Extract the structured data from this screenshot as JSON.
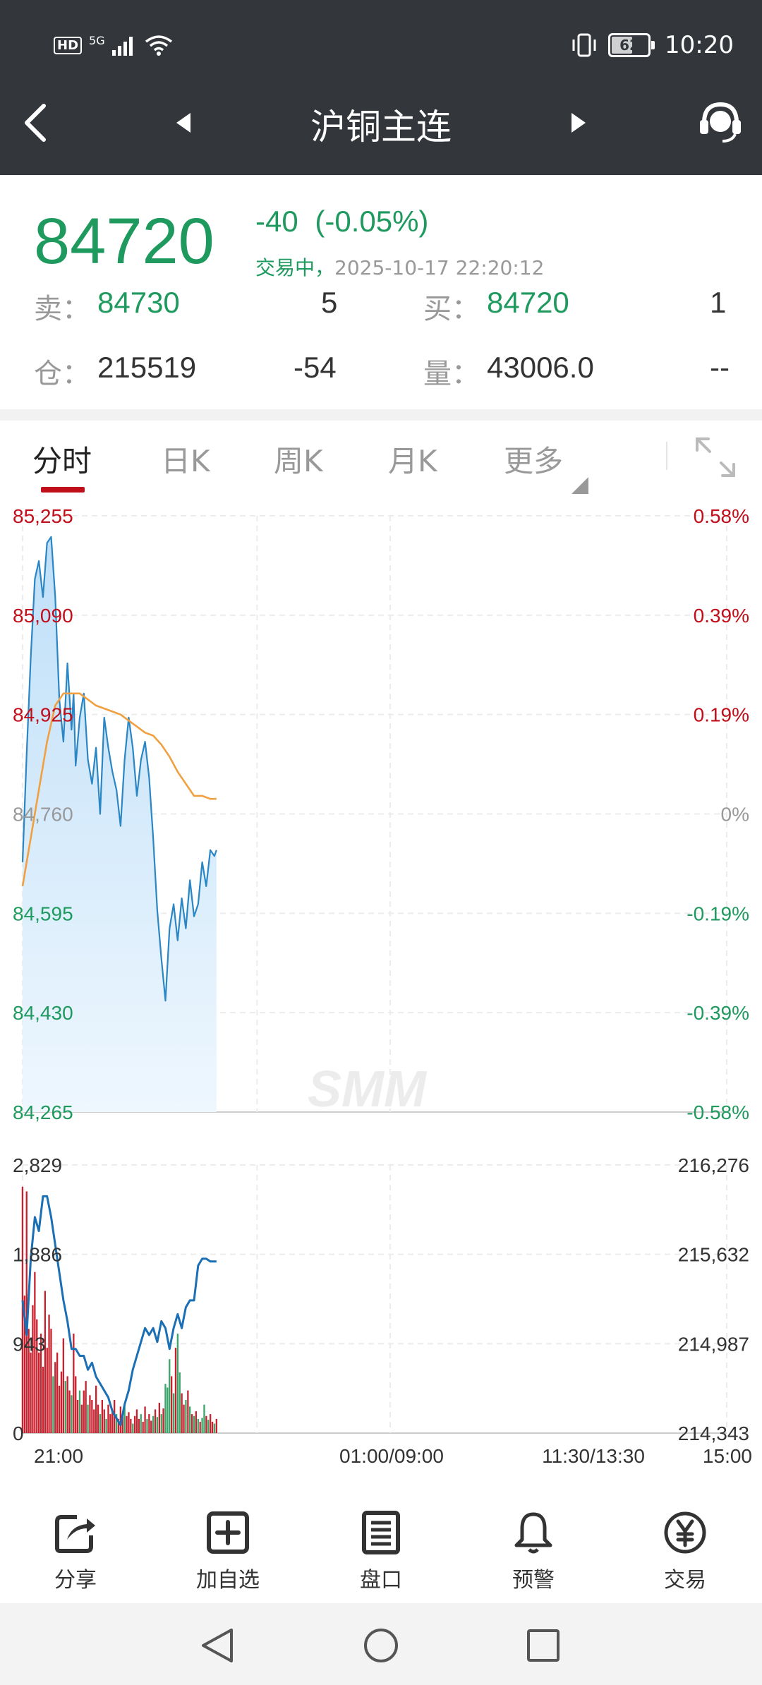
{
  "status_bar": {
    "time": "10:20",
    "battery": "62",
    "battery_level": 0.62,
    "network": "5G",
    "hd": "HD"
  },
  "nav": {
    "title": "沪铜主连"
  },
  "quote": {
    "price": "84720",
    "change": "-40",
    "change_pct": "(-0.05%)",
    "status": "交易中，",
    "timestamp": "2025-10-17 22:20:12",
    "sell_label": "卖：",
    "sell_price": "84730",
    "sell_vol": "5",
    "buy_label": "买：",
    "buy_price": "84720",
    "buy_vol": "1",
    "oi_label": "仓：",
    "oi": "215519",
    "oi_change": "-54",
    "vol_label": "量：",
    "volume": "43006.0",
    "vol_extra": "--"
  },
  "tabs": [
    {
      "label": "分时",
      "active": true
    },
    {
      "label": "日K",
      "active": false
    },
    {
      "label": "周K",
      "active": false
    },
    {
      "label": "月K",
      "active": false
    },
    {
      "label": "更多",
      "active": false
    }
  ],
  "chart_data": [
    {
      "type": "line",
      "title": "",
      "x_ticks": [
        "21:00",
        "01:00/09:00",
        "11:30/13:30",
        "15:00"
      ],
      "y_ticks": [
        "85,255",
        "85,090",
        "84,925",
        "84,760",
        "84,595",
        "84,430",
        "84,265"
      ],
      "y_right_ticks": [
        "0.58%",
        "0.39%",
        "0.19%",
        "0%",
        "-0.19%",
        "-0.39%",
        "-0.58%"
      ],
      "ylim": [
        84265,
        85255
      ],
      "prev_close": 84760,
      "xlim": [
        0,
        345
      ],
      "series": [
        {
          "kind": "price",
          "color": "#2a86c4",
          "x": [
            0,
            2,
            4,
            6,
            8,
            10,
            12,
            14,
            16,
            18,
            20,
            22,
            24,
            25,
            26,
            28,
            30,
            32,
            34,
            36,
            38,
            40,
            42,
            44,
            46,
            48,
            50,
            52,
            54,
            56,
            58,
            60,
            62,
            64,
            66,
            68,
            70,
            72,
            74,
            76,
            78,
            80,
            82,
            84,
            86,
            88,
            90,
            92,
            94,
            95
          ],
          "y": [
            84680,
            84860,
            85020,
            85150,
            85180,
            85120,
            85210,
            85220,
            85120,
            84950,
            84880,
            85010,
            84900,
            84960,
            84840,
            84920,
            84960,
            84850,
            84810,
            84870,
            84760,
            84920,
            84870,
            84830,
            84800,
            84740,
            84850,
            84920,
            84870,
            84790,
            84850,
            84880,
            84820,
            84720,
            84600,
            84520,
            84450,
            84570,
            84610,
            84550,
            84620,
            84570,
            84650,
            84590,
            84610,
            84680,
            84640,
            84700,
            84690,
            84700
          ]
        },
        {
          "kind": "average",
          "color": "#f0a040",
          "x": [
            0,
            4,
            8,
            12,
            16,
            20,
            24,
            28,
            32,
            36,
            40,
            44,
            48,
            52,
            56,
            60,
            64,
            68,
            72,
            76,
            80,
            84,
            88,
            92,
            95
          ],
          "y": [
            84640,
            84720,
            84800,
            84880,
            84940,
            84960,
            84960,
            84960,
            84950,
            84940,
            84935,
            84930,
            84925,
            84915,
            84905,
            84895,
            84890,
            84875,
            84855,
            84830,
            84810,
            84790,
            84790,
            84785,
            84785
          ]
        }
      ]
    },
    {
      "type": "bar",
      "title": "",
      "y_ticks": [
        "2,829",
        "1,886",
        "943",
        "0"
      ],
      "y_right_ticks": [
        "216,276",
        "215,632",
        "214,987",
        "214,343"
      ],
      "ylim": [
        0,
        2829
      ],
      "open_interest_ylim": [
        214343,
        216276
      ],
      "volume_series": {
        "x": [
          0,
          1,
          2,
          3,
          4,
          5,
          6,
          7,
          8,
          9,
          10,
          11,
          12,
          13,
          14,
          15,
          16,
          17,
          18,
          19,
          20,
          21,
          22,
          23,
          24,
          25,
          26,
          27,
          28,
          29,
          30,
          31,
          32,
          33,
          34,
          35,
          36,
          37,
          38,
          39,
          40,
          41,
          42,
          43,
          44,
          45,
          46,
          47,
          48,
          49,
          50,
          51,
          52,
          53,
          54,
          55,
          56,
          57,
          58,
          59,
          60,
          61,
          62,
          63,
          64,
          65,
          66,
          67,
          68,
          69,
          70,
          71,
          72,
          73,
          74,
          75,
          76,
          77,
          78,
          79,
          80,
          81,
          82,
          83,
          84,
          85,
          86,
          87,
          88,
          89,
          90,
          91,
          92,
          93,
          94,
          95
        ],
        "values": [
          2600,
          1450,
          2550,
          1100,
          850,
          1350,
          1700,
          1200,
          850,
          1050,
          700,
          1500,
          900,
          1250,
          1100,
          600,
          750,
          850,
          500,
          650,
          1000,
          550,
          600,
          450,
          400,
          1050,
          600,
          350,
          450,
          300,
          450,
          550,
          300,
          400,
          350,
          250,
          500,
          300,
          200,
          350,
          250,
          150,
          300,
          200,
          250,
          350,
          200,
          150,
          280,
          200,
          300,
          180,
          220,
          150,
          100,
          180,
          250,
          150,
          200,
          120,
          280,
          150,
          200,
          130,
          180,
          250,
          170,
          320,
          200,
          260,
          520,
          480,
          780,
          600,
          420,
          900,
          1050,
          640,
          420,
          300,
          350,
          450,
          280,
          200,
          180,
          230,
          150,
          120,
          160,
          300,
          180,
          140,
          200,
          120,
          100,
          150
        ],
        "up_flags": [
          0,
          0,
          0,
          0,
          0,
          0,
          0,
          0,
          0,
          0,
          0,
          0,
          0,
          0,
          0,
          1,
          0,
          0,
          0,
          0,
          0,
          1,
          0,
          0,
          1,
          0,
          0,
          0,
          1,
          0,
          0,
          0,
          1,
          0,
          0,
          0,
          0,
          0,
          1,
          0,
          0,
          1,
          0,
          0,
          0,
          0,
          1,
          0,
          0,
          0,
          1,
          0,
          0,
          0,
          1,
          0,
          0,
          0,
          1,
          0,
          0,
          1,
          0,
          0,
          1,
          0,
          1,
          0,
          1,
          0,
          1,
          1,
          1,
          0,
          1,
          0,
          1,
          1,
          0,
          0,
          1,
          0,
          1,
          0,
          1,
          0,
          1,
          0,
          1,
          1,
          0,
          1,
          0,
          0,
          1,
          0
        ]
      },
      "open_interest_series": {
        "color": "#1a6fb5",
        "x": [
          0,
          2,
          4,
          6,
          8,
          10,
          12,
          14,
          16,
          18,
          20,
          22,
          24,
          26,
          28,
          30,
          32,
          34,
          36,
          38,
          40,
          42,
          44,
          46,
          48,
          50,
          52,
          54,
          56,
          58,
          60,
          62,
          64,
          66,
          68,
          70,
          72,
          74,
          76,
          78,
          80,
          82,
          84,
          86,
          88,
          90,
          92,
          94,
          95
        ],
        "y": [
          215300,
          215050,
          215600,
          215900,
          215800,
          216050,
          216050,
          215900,
          215700,
          215500,
          215300,
          215150,
          214950,
          214950,
          214900,
          214900,
          214800,
          214850,
          214750,
          214700,
          214650,
          214600,
          214500,
          214450,
          214400,
          214550,
          214650,
          214800,
          214900,
          215000,
          215100,
          215050,
          215100,
          215000,
          215150,
          215100,
          214950,
          215100,
          215200,
          215100,
          215250,
          215300,
          215300,
          215550,
          215600,
          215600,
          215580,
          215580,
          215580
        ]
      }
    }
  ],
  "watermark": "SMM",
  "toolbar": [
    {
      "label": "分享",
      "icon": "share-icon"
    },
    {
      "label": "加自选",
      "icon": "add-watchlist-icon"
    },
    {
      "label": "盘口",
      "icon": "order-book-icon"
    },
    {
      "label": "预警",
      "icon": "bell-icon"
    },
    {
      "label": "交易",
      "icon": "yen-icon"
    }
  ],
  "colors": {
    "header_bg": "#33363b",
    "up": "#c00e1b",
    "down": "#1f9a5f",
    "price_line": "#2a86c4",
    "avg_line": "#f0a040"
  }
}
